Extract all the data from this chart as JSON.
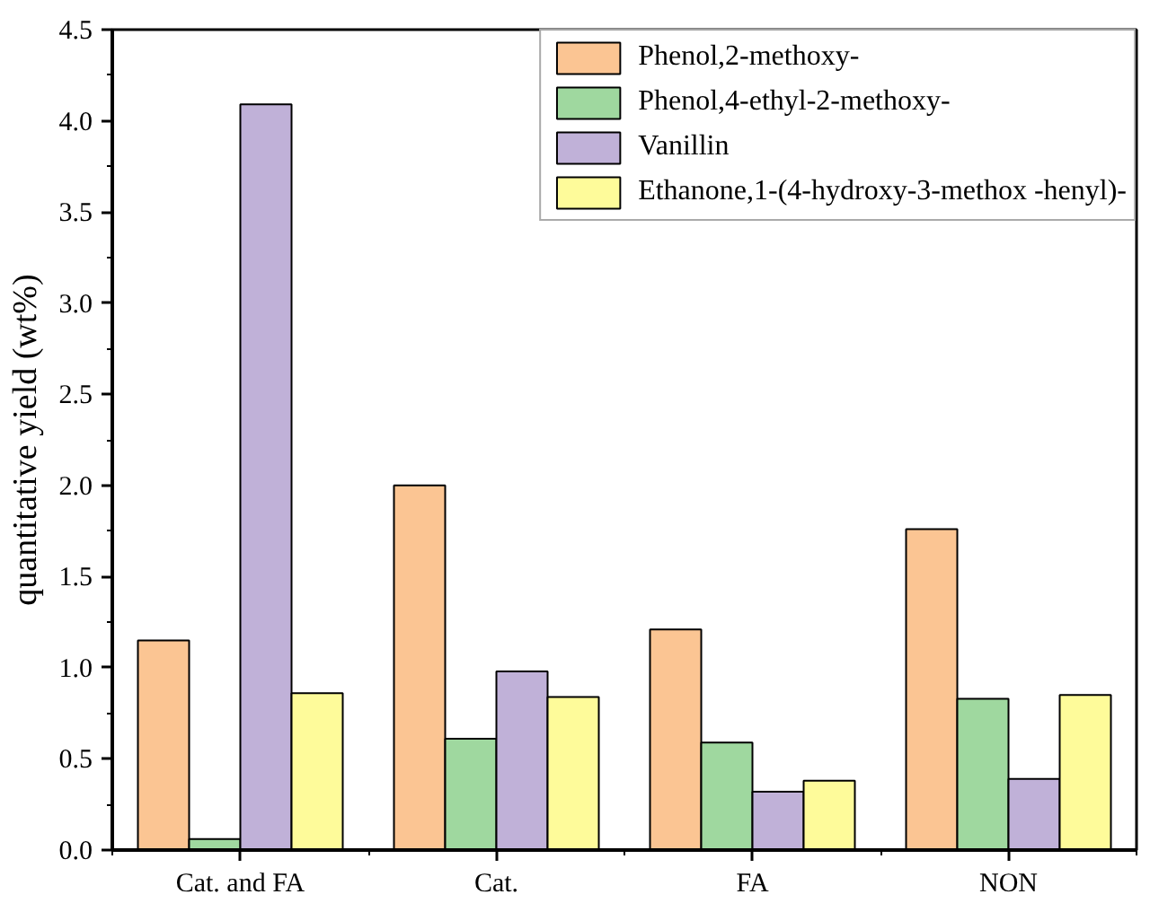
{
  "chart_data": {
    "type": "bar",
    "ylabel": "quantitative yield (wt%)",
    "categories": [
      "Cat. and FA",
      "Cat.",
      "FA",
      "NON"
    ],
    "series": [
      {
        "name": "Phenol,2-methoxy-",
        "color": "#fbc593",
        "values": [
          1.15,
          2.0,
          1.21,
          1.76
        ]
      },
      {
        "name": "Phenol,4-ethyl-2-methoxy-",
        "color": "#9fd89f",
        "values": [
          0.06,
          0.61,
          0.59,
          0.83
        ]
      },
      {
        "name": "Vanillin",
        "color": "#c0b1d8",
        "values": [
          4.09,
          0.98,
          0.32,
          0.39
        ]
      },
      {
        "name": "Ethanone,1-(4-hydroxy-3-methox -henyl)-",
        "color": "#fefb9a",
        "values": [
          0.86,
          0.84,
          0.38,
          0.85
        ]
      }
    ],
    "ylim": [
      0,
      4.5
    ],
    "yticks": [
      {
        "value": 0,
        "label": "0.0"
      },
      0.5,
      {
        "value": 1,
        "label": "1.0"
      },
      1.5,
      {
        "value": 2,
        "label": "2.0"
      },
      2.5,
      {
        "value": 3,
        "label": "3.0"
      },
      3.5,
      {
        "value": 4,
        "label": "4.0"
      },
      4.5
    ],
    "grid": false,
    "legend": "top right"
  }
}
